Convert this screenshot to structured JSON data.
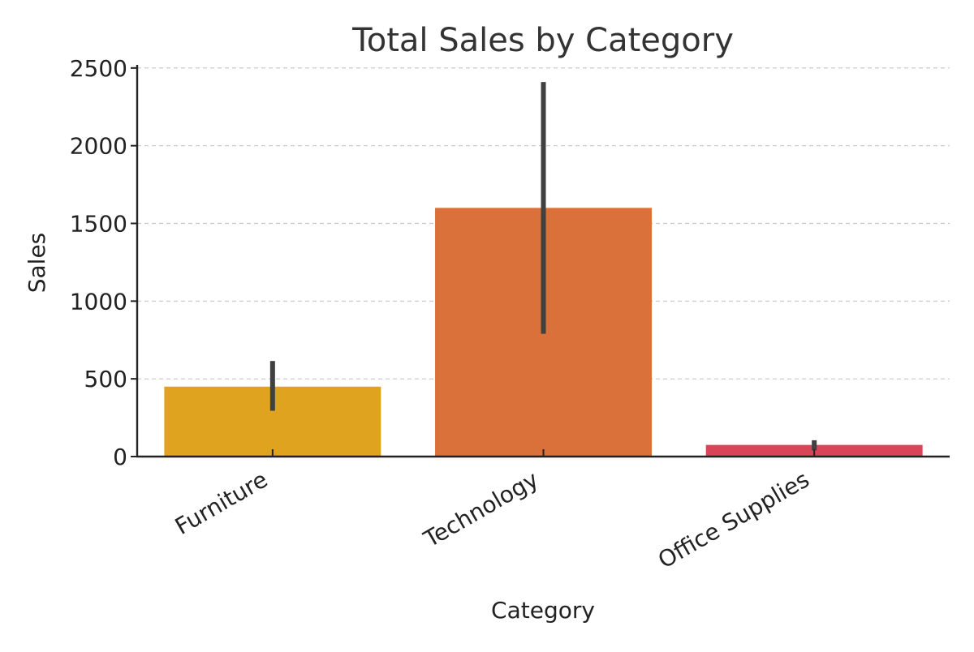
{
  "chart_data": {
    "type": "bar",
    "title": "Total Sales by Category",
    "xlabel": "Category",
    "ylabel": "Sales",
    "categories": [
      "Furniture",
      "Technology",
      "Office Supplies"
    ],
    "values": [
      450,
      1600,
      75
    ],
    "error_bars": [
      [
        295,
        615
      ],
      [
        790,
        2410
      ],
      [
        40,
        105
      ]
    ],
    "ylim": [
      0,
      2520
    ],
    "yticks": [
      0,
      500,
      1000,
      1500,
      2000,
      2500
    ],
    "grid": "y-dashed",
    "legend": "none",
    "colors": [
      "#E0A320",
      "#DB713A",
      "#D94558"
    ],
    "errorbar_color": "#404040",
    "axis_color": "#222222",
    "grid_color": "#C9C3CC"
  }
}
